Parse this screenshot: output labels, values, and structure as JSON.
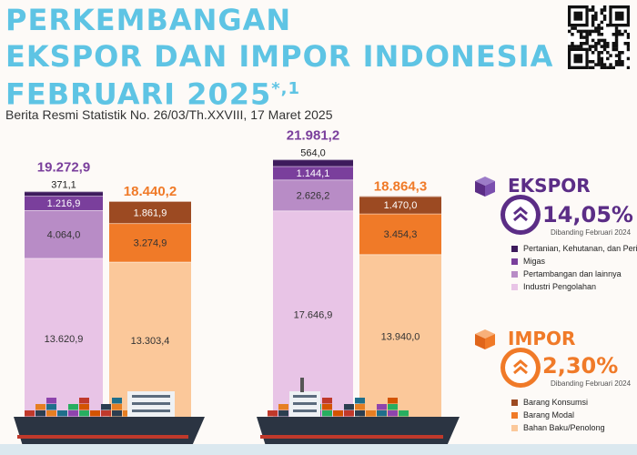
{
  "header": {
    "title_line1": "PERKEMBANGAN",
    "title_line2": "EKSPOR DAN IMPOR INDONESIA",
    "title_line3": "FEBRUARI 2025",
    "title_sup": "*,1",
    "subtitle": "Berita Resmi Statistik No. 26/03/Th.XXVIII, 17 Maret 2025"
  },
  "ekspor": {
    "label": "EKSPOR",
    "change": "14,05%",
    "compare_text": "Dibanding Februari 2024",
    "color": "#5b2d86"
  },
  "impor": {
    "label": "IMPOR",
    "change": "2,30%",
    "compare_text": "Dibanding Februari 2024",
    "color": "#f07a28"
  },
  "chart_data": {
    "type": "bar",
    "stacked": true,
    "groups": [
      {
        "kind": "ekspor",
        "total": "19.272,9",
        "segments": [
          {
            "category": "Industri Pengolahan",
            "value": 13620.9,
            "label": "13.620,9",
            "color": "#e8c4e6"
          },
          {
            "category": "Pertambangan dan lainnya",
            "value": 4064.0,
            "label": "4.064,0",
            "color": "#b88cc6"
          },
          {
            "category": "Migas",
            "value": 1216.9,
            "label": "1.216,9",
            "color": "#7a3f9c"
          },
          {
            "category": "Pertanian, Kehutanan, dan Perikanan",
            "value": 371.1,
            "label": "371,1",
            "color": "#3d1a5c"
          }
        ]
      },
      {
        "kind": "impor",
        "total": "18.440,2",
        "segments": [
          {
            "category": "Bahan Baku/Penolong",
            "value": 13303.4,
            "label": "13.303,4",
            "color": "#fbc89a"
          },
          {
            "category": "Barang Modal",
            "value": 3274.9,
            "label": "3.274,9",
            "color": "#f07a28"
          },
          {
            "category": "Barang Konsumsi",
            "value": 1861.9,
            "label": "1.861,9",
            "color": "#9c4a22"
          }
        ]
      },
      {
        "kind": "ekspor",
        "total": "21.981,2",
        "segments": [
          {
            "category": "Industri Pengolahan",
            "value": 17646.9,
            "label": "17.646,9",
            "color": "#e8c4e6"
          },
          {
            "category": "Pertambangan dan lainnya",
            "value": 2626.2,
            "label": "2.626,2",
            "color": "#b88cc6"
          },
          {
            "category": "Migas",
            "value": 1144.1,
            "label": "1.144,1",
            "color": "#7a3f9c"
          },
          {
            "category": "Pertanian, Kehutanan, dan Perikanan",
            "value": 564.0,
            "label": "564,0",
            "color": "#3d1a5c"
          }
        ]
      },
      {
        "kind": "impor",
        "total": "18.864,3",
        "segments": [
          {
            "category": "Bahan Baku/Penolong",
            "value": 13940.0,
            "label": "13.940,0",
            "color": "#fbc89a"
          },
          {
            "category": "Barang Modal",
            "value": 3454.3,
            "label": "3.454,3",
            "color": "#f07a28"
          },
          {
            "category": "Barang Konsumsi",
            "value": 1470.0,
            "label": "1.470,0",
            "color": "#9c4a22"
          }
        ]
      }
    ],
    "legend_ekspor": [
      {
        "label": "Pertanian, Kehutanan, dan Perikanan",
        "color": "#3d1a5c"
      },
      {
        "label": "Migas",
        "color": "#7a3f9c"
      },
      {
        "label": "Pertambangan dan lainnya",
        "color": "#b88cc6"
      },
      {
        "label": "Industri Pengolahan",
        "color": "#e8c4e6"
      }
    ],
    "legend_impor": [
      {
        "label": "Barang Konsumsi",
        "color": "#9c4a22"
      },
      {
        "label": "Barang Modal",
        "color": "#f07a28"
      },
      {
        "label": "Bahan Baku/Penolong",
        "color": "#fbc89a"
      }
    ],
    "total_colors": {
      "ekspor": "#7a3f9c",
      "impor": "#f07a28"
    }
  }
}
